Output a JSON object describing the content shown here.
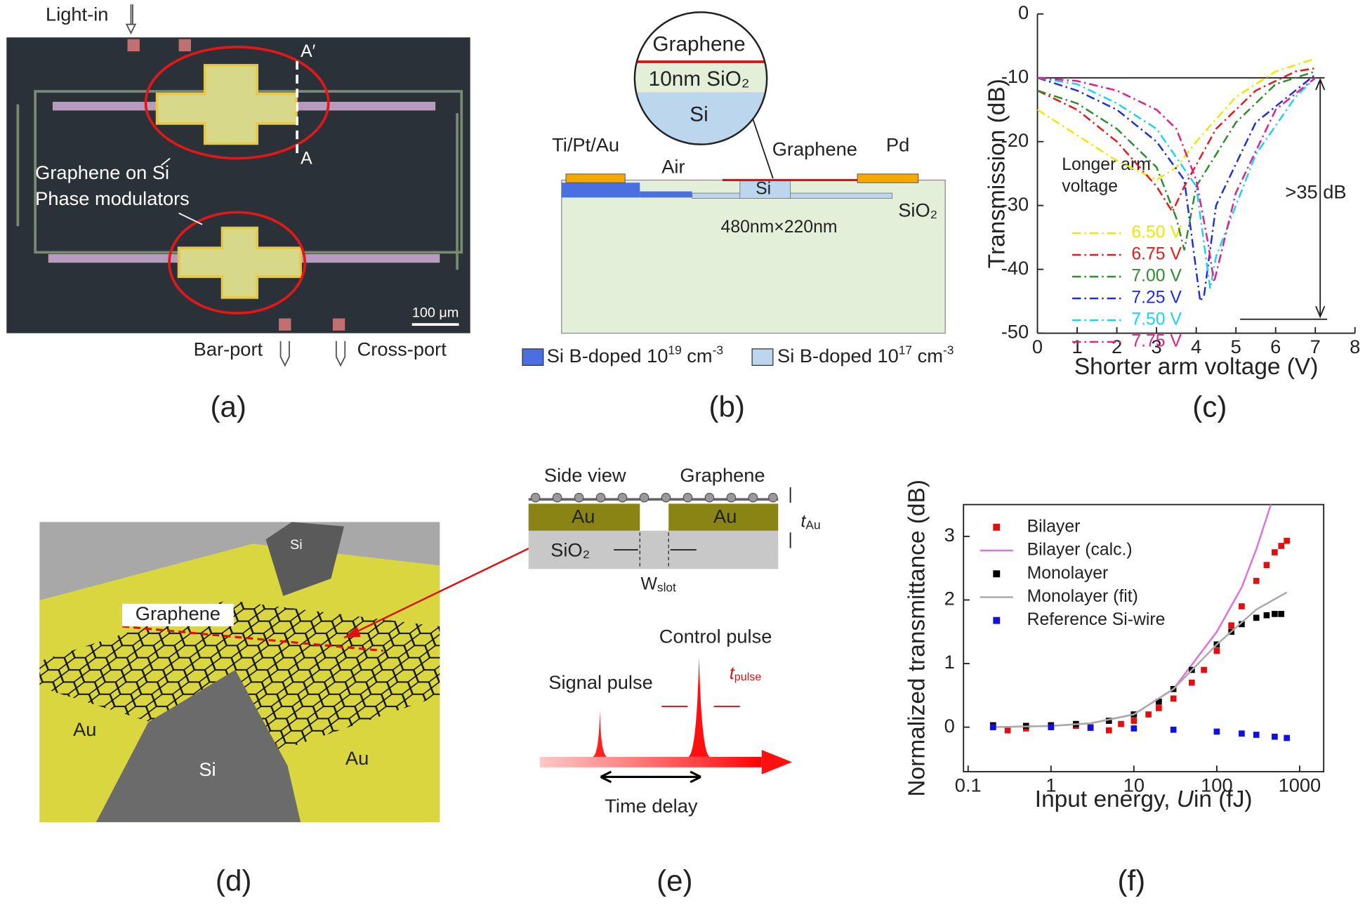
{
  "panels": {
    "a": {
      "label": "(a)",
      "light_in": "Light-in",
      "modulator_lines": [
        "Graphene on Si",
        "Phase modulators"
      ],
      "a_prime": "A′",
      "a": "A",
      "scale_bar": "100 μm",
      "bar_port": "Bar-port",
      "cross_port": "Cross-port"
    },
    "b": {
      "label": "(b)",
      "inset": [
        "Graphene",
        "10nm SiO₂",
        "Si"
      ],
      "ti_pt_au": "Ti/Pt/Au",
      "graphene": "Graphene",
      "pd": "Pd",
      "air": "Air",
      "si": "Si",
      "size": "480nm×220nm",
      "sio2": "SiO₂",
      "legend": [
        {
          "text": "Si B-doped 10",
          "sup": "19",
          "unit": " cm",
          "unit_sup": "-3"
        },
        {
          "text": "Si B-doped 10",
          "sup": "17",
          "unit": " cm",
          "unit_sup": "-3"
        }
      ]
    },
    "d": {
      "label": "(d)",
      "si_top": "Si",
      "graphene": "Graphene",
      "au_left": "Au",
      "si_bottom": "Si",
      "au_right": "Au"
    },
    "e": {
      "label": "(e)",
      "side_view": "Side view",
      "graphene": "Graphene",
      "au_left": "Au",
      "au_right": "Au",
      "sio2": "SiO₂",
      "t": "t",
      "t_sub": "Au",
      "w": "W",
      "w_sub": "slot",
      "control": "Control pulse",
      "signal": "Signal pulse",
      "tp": "t",
      "tp_sub": "pulse",
      "delay": "Time delay"
    },
    "c": {
      "label": "(c)"
    },
    "f": {
      "label": "(f)"
    }
  },
  "chart_data": [
    {
      "type": "line",
      "y_label": "Transmission (dB)",
      "x_label": "Shorter arm voltage (V)",
      "legend_title": [
        "Longer arm",
        "voltage"
      ],
      "annotation": ">35 dB",
      "line_style": "dash-dot",
      "xlim": [
        0,
        8
      ],
      "ylim": [
        -50,
        0
      ],
      "xticks": [
        0,
        1,
        2,
        3,
        4,
        5,
        6,
        7,
        8
      ],
      "yticks": [
        0,
        -10,
        -20,
        -30,
        -40,
        -50
      ],
      "series": [
        {
          "name": "6.50 V",
          "color": "#f2e600",
          "x": [
            0,
            1,
            2,
            3,
            3.5,
            4,
            5,
            6,
            7
          ],
          "values": [
            -15,
            -19,
            -23,
            -26,
            -24,
            -20,
            -13,
            -9,
            -7
          ]
        },
        {
          "name": "6.75 V",
          "color": "#e31a1c",
          "x": [
            0,
            1,
            2,
            3,
            3.4,
            3.7,
            4.5,
            5.5,
            6.5,
            7
          ],
          "values": [
            -12,
            -15,
            -20,
            -27,
            -31,
            -27,
            -18,
            -12,
            -9,
            -8.5
          ]
        },
        {
          "name": "7.00 V",
          "color": "#2e8b2e",
          "x": [
            0,
            1,
            2,
            3,
            3.5,
            3.7,
            4,
            5,
            6,
            7
          ],
          "values": [
            -12,
            -14,
            -18,
            -24,
            -32,
            -37,
            -27,
            -17,
            -11,
            -9
          ]
        },
        {
          "name": "7.25 V",
          "color": "#1f2fd6",
          "x": [
            0,
            1,
            2,
            3,
            3.7,
            4.1,
            4.2,
            4.5,
            5.5,
            7
          ],
          "values": [
            -10,
            -12,
            -15,
            -20,
            -26,
            -45,
            -44,
            -30,
            -17,
            -9.5
          ]
        },
        {
          "name": "7.50 V",
          "color": "#19d3f0",
          "x": [
            0,
            1,
            2,
            3,
            4,
            4.35,
            4.5,
            5.5,
            6.5,
            7
          ],
          "values": [
            -10,
            -11,
            -14,
            -18,
            -27,
            -43,
            -38,
            -22,
            -13,
            -10
          ]
        },
        {
          "name": "7.75 V",
          "color": "#e0208a",
          "x": [
            0,
            1,
            2,
            3,
            3.5,
            4,
            4.3,
            4.45,
            5,
            6,
            7
          ],
          "values": [
            -10,
            -10.5,
            -12,
            -15,
            -18,
            -26,
            -36,
            -42,
            -28,
            -15,
            -10
          ]
        }
      ]
    },
    {
      "type": "scatter",
      "y_label": "Normalized transmittance (dB)",
      "x_label_parts": [
        "Input energy, ",
        "U",
        "in (fJ)"
      ],
      "log_x": true,
      "xlim": [
        0.088,
        1950
      ],
      "ylim": [
        -0.7,
        3.5
      ],
      "xticks": [
        0.1,
        1,
        10,
        100,
        1000
      ],
      "yticks": [
        0,
        1,
        2,
        3
      ],
      "series": [
        {
          "name": "Bilayer",
          "color": "#e01010",
          "mode": "markers",
          "x": [
            0.2,
            0.3,
            0.5,
            1,
            2,
            3,
            5,
            7,
            10,
            15,
            20,
            30,
            50,
            70,
            100,
            150,
            200,
            300,
            400,
            500,
            600,
            700
          ],
          "values": [
            0,
            -0.05,
            -0.02,
            0,
            0.02,
            0,
            -0.05,
            0.05,
            0.1,
            0.2,
            0.3,
            0.45,
            0.7,
            0.9,
            1.2,
            1.6,
            1.9,
            2.3,
            2.55,
            2.75,
            2.85,
            2.93
          ]
        },
        {
          "name": "Bilayer (calc.)",
          "color": "#e070e0",
          "mode": "line",
          "x": [
            0.2,
            1,
            3,
            10,
            30,
            100,
            200,
            300,
            400,
            450
          ],
          "values": [
            0,
            0.02,
            0.06,
            0.2,
            0.6,
            1.5,
            2.2,
            2.8,
            3.3,
            3.5
          ]
        },
        {
          "name": "Monolayer",
          "color": "#000000",
          "mode": "markers",
          "x": [
            0.2,
            0.5,
            1,
            2,
            5,
            10,
            20,
            30,
            50,
            100,
            150,
            200,
            300,
            400,
            500,
            600
          ],
          "values": [
            0.03,
            0.02,
            0.03,
            0.05,
            0.1,
            0.2,
            0.4,
            0.6,
            0.9,
            1.3,
            1.5,
            1.62,
            1.72,
            1.76,
            1.78,
            1.78
          ]
        },
        {
          "name": "Monolayer (fit)",
          "color": "#aaaaaa",
          "mode": "line",
          "x": [
            0.2,
            1,
            3,
            10,
            30,
            100,
            300,
            700
          ],
          "values": [
            0,
            0.02,
            0.06,
            0.2,
            0.6,
            1.3,
            1.85,
            2.12
          ]
        },
        {
          "name": "Reference Si-wire",
          "color": "#1010e0",
          "mode": "markers",
          "x": [
            0.2,
            1,
            3,
            10,
            30,
            100,
            200,
            300,
            500,
            700
          ],
          "values": [
            0,
            0,
            -0.01,
            -0.02,
            -0.04,
            -0.07,
            -0.1,
            -0.12,
            -0.15,
            -0.17
          ]
        }
      ]
    }
  ]
}
